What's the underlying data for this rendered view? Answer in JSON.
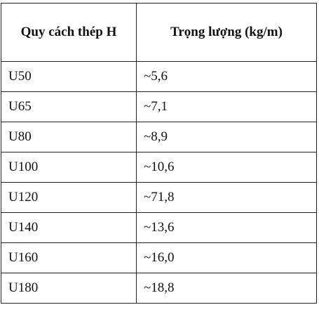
{
  "table": {
    "headers": [
      "Quy cách thép H",
      "Trọng lượng (kg/m)"
    ],
    "rows": [
      [
        "U50",
        "~5,6"
      ],
      [
        "U65",
        "~7,1"
      ],
      [
        "U80",
        "~8,9"
      ],
      [
        "U100",
        "~10,6"
      ],
      [
        "U120",
        "~71,8"
      ],
      [
        "U140",
        "~13,6"
      ],
      [
        "U160",
        "~16,0"
      ],
      [
        "U180",
        "~18,8"
      ]
    ]
  }
}
